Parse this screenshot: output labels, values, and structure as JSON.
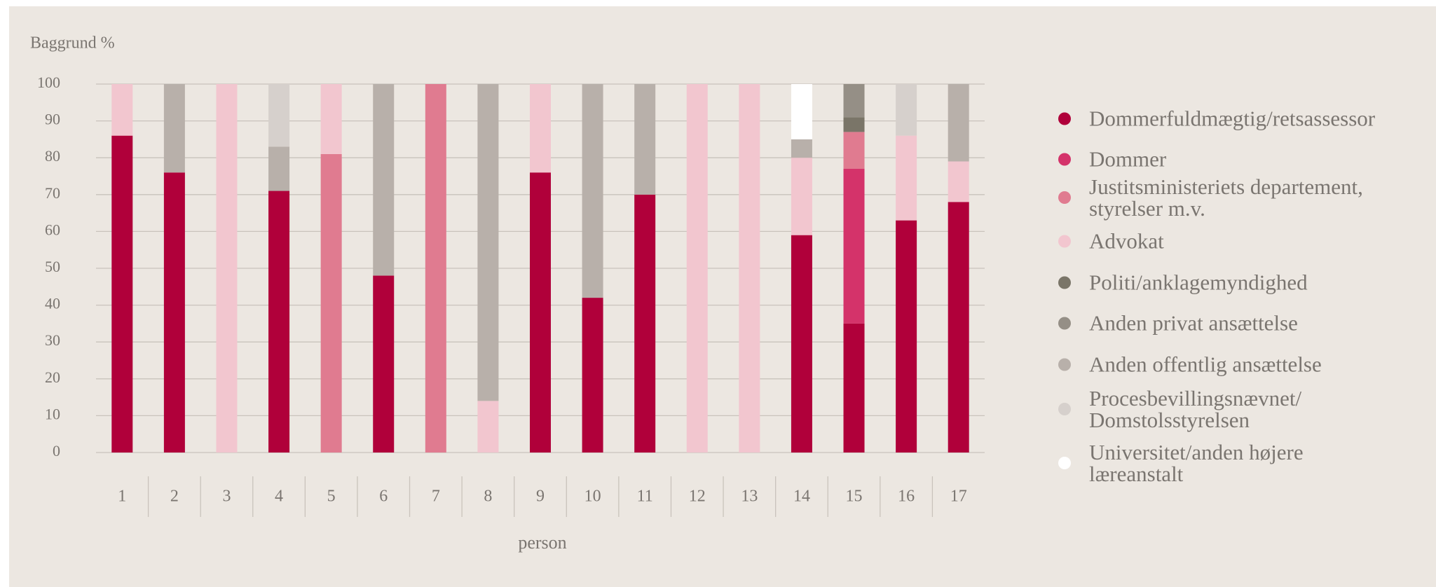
{
  "chart_data": {
    "type": "stacked_bar",
    "y_label": "Baggrund %",
    "x_label": "person",
    "categories": [
      "1",
      "2",
      "3",
      "4",
      "5",
      "6",
      "7",
      "8",
      "9",
      "10",
      "11",
      "12",
      "13",
      "14",
      "15",
      "16",
      "17"
    ],
    "ylim": [
      0,
      100
    ],
    "yticks": [
      0,
      10,
      20,
      30,
      40,
      50,
      60,
      70,
      80,
      90,
      100
    ],
    "grid": true,
    "legend": "right",
    "series": [
      {
        "name": "Dommerfuldmægtig/retsassessor",
        "color": "#b0003a",
        "values": [
          86,
          76,
          0,
          71,
          0,
          48,
          0,
          0,
          76,
          42,
          70,
          0,
          0,
          59,
          35,
          63,
          68
        ]
      },
      {
        "name": "Dommer",
        "color": "#d4336a",
        "values": [
          0,
          0,
          0,
          0,
          0,
          0,
          0,
          0,
          0,
          0,
          0,
          0,
          0,
          0,
          42,
          0,
          0
        ]
      },
      {
        "name": "Justitsministeriets departement,\nstyrelser m.v.",
        "color": "#e07b90",
        "values": [
          0,
          0,
          0,
          0,
          81,
          0,
          100,
          0,
          0,
          0,
          0,
          0,
          0,
          0,
          10,
          0,
          0
        ]
      },
      {
        "name": "Advokat",
        "color": "#f2c6cf",
        "values": [
          14,
          0,
          100,
          0,
          19,
          0,
          0,
          14,
          24,
          0,
          0,
          100,
          100,
          21,
          0,
          23,
          11
        ]
      },
      {
        "name": "Politi/anklagemyndighed",
        "color": "#7a7568",
        "values": [
          0,
          0,
          0,
          0,
          0,
          0,
          0,
          0,
          0,
          0,
          0,
          0,
          0,
          0,
          4,
          0,
          0
        ]
      },
      {
        "name": "Anden privat ansættelse",
        "color": "#958f86",
        "values": [
          0,
          0,
          0,
          0,
          0,
          0,
          0,
          0,
          0,
          0,
          0,
          0,
          0,
          0,
          9,
          0,
          0
        ]
      },
      {
        "name": "Anden offentlig ansættelse",
        "color": "#b8b0aa",
        "values": [
          0,
          24,
          0,
          12,
          0,
          52,
          0,
          86,
          0,
          58,
          30,
          0,
          0,
          5,
          0,
          0,
          21
        ]
      },
      {
        "name": "Procesbevillingsnævnet/\nDomstolsstyrelsen",
        "color": "#d6d0cc",
        "values": [
          0,
          0,
          0,
          17,
          0,
          0,
          0,
          0,
          0,
          0,
          0,
          0,
          0,
          0,
          0,
          14,
          0
        ]
      },
      {
        "name": "Universitet/anden højere\nlæreanstalt",
        "color": "#ffffff",
        "values": [
          0,
          0,
          0,
          0,
          0,
          0,
          0,
          0,
          0,
          0,
          0,
          0,
          0,
          15,
          0,
          0,
          0
        ]
      }
    ]
  }
}
